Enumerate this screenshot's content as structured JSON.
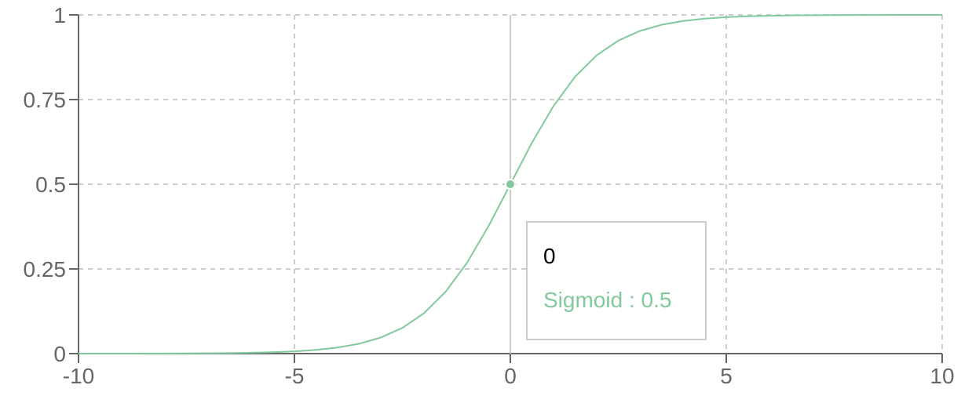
{
  "chart_data": {
    "type": "line",
    "title": "",
    "xlabel": "",
    "ylabel": "",
    "xlim": [
      -10,
      10
    ],
    "ylim": [
      0,
      1
    ],
    "x_ticks": [
      "-10",
      "-5",
      "0",
      "5",
      "10"
    ],
    "y_ticks": [
      "0",
      "0.25",
      "0.5",
      "0.75",
      "1"
    ],
    "grid": true,
    "series": [
      {
        "name": "Sigmoid",
        "color": "#82ca9d",
        "x": [
          -10,
          -9.5,
          -9,
          -8.5,
          -8,
          -7.5,
          -7,
          -6.5,
          -6,
          -5.5,
          -5,
          -4.5,
          -4,
          -3.5,
          -3,
          -2.5,
          -2,
          -1.5,
          -1,
          -0.5,
          0,
          0.5,
          1,
          1.5,
          2,
          2.5,
          3,
          3.5,
          4,
          4.5,
          5,
          5.5,
          6,
          6.5,
          7,
          7.5,
          8,
          8.5,
          9,
          9.5,
          10
        ],
        "values": [
          0.0,
          0.0001,
          0.0001,
          0.0002,
          0.0003,
          0.0006,
          0.0009,
          0.0015,
          0.0025,
          0.0041,
          0.0067,
          0.011,
          0.018,
          0.0293,
          0.0474,
          0.0759,
          0.1192,
          0.1824,
          0.2689,
          0.3775,
          0.5,
          0.6225,
          0.7311,
          0.8176,
          0.8808,
          0.9241,
          0.9526,
          0.9707,
          0.982,
          0.989,
          0.9933,
          0.9959,
          0.9975,
          0.9985,
          0.9991,
          0.9994,
          0.9997,
          0.9998,
          0.9999,
          0.9999,
          1.0
        ]
      }
    ],
    "active_point": {
      "x": 0,
      "y": 0.5
    },
    "tooltip": {
      "label": "0",
      "series_name": "Sigmoid",
      "separator": " : ",
      "value": "0.5"
    }
  }
}
